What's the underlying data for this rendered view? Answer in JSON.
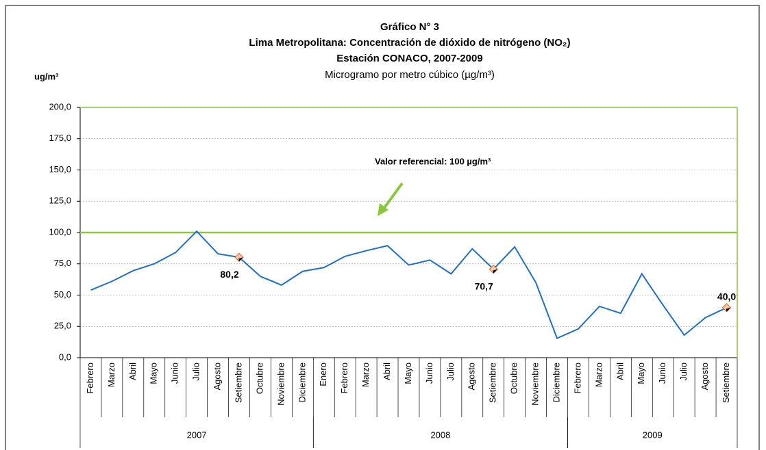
{
  "chart_data": {
    "type": "line",
    "title": "Gráfico N° 3",
    "subtitle": "Lima Metropolitana: Concentración de dióxido de nitrógeno (NO₂)",
    "subtitle2": "Estación CONACO, 2007-2009",
    "note": "Microgramo por metro cúbico (µg/m³)",
    "y_unit": "ug/m³",
    "categories": [
      "Febrero",
      "Marzo",
      "Abril",
      "Mayo",
      "Junio",
      "Julio",
      "Agosto",
      "Setiembre",
      "Octubre",
      "Noviembre",
      "Diciembre",
      "Enero",
      "Febrero",
      "Marzo",
      "Abril",
      "Mayo",
      "Junio",
      "Julio",
      "Agosto",
      "Setiembre",
      "Octubre",
      "Noviembre",
      "Diciembre",
      "Febrero",
      "Marzo",
      "Abril",
      "Mayo",
      "Junio",
      "Julio",
      "Agosto",
      "Setiembre"
    ],
    "groups": [
      {
        "label": "2007",
        "count": 11
      },
      {
        "label": "2008",
        "count": 12
      },
      {
        "label": "2009",
        "count": 8
      }
    ],
    "series": [
      {
        "name": "NO2",
        "color": "#1f6fc6",
        "values": [
          54,
          61,
          69.5,
          75,
          84,
          101,
          83,
          80.2,
          65,
          58,
          69,
          72,
          81,
          85.5,
          89.5,
          74,
          78,
          67,
          87,
          70.7,
          88.5,
          60,
          15.5,
          23,
          41,
          35.5,
          67,
          42,
          18,
          32,
          40.0
        ],
        "value_labels": [
          null,
          null,
          null,
          null,
          null,
          null,
          null,
          "80,2",
          null,
          null,
          null,
          null,
          null,
          null,
          null,
          null,
          null,
          null,
          null,
          "70,7",
          null,
          null,
          null,
          null,
          null,
          null,
          null,
          null,
          null,
          null,
          "40,0"
        ]
      }
    ],
    "reference_line": {
      "value": 100,
      "color": "#8cc63f",
      "label": "Valor referencial: 100 µg/m³"
    },
    "ylim": [
      0,
      200
    ],
    "yticks": [
      {
        "value": 0,
        "label": "0,0"
      },
      {
        "value": 25,
        "label": "25,0"
      },
      {
        "value": 50,
        "label": "50,0"
      },
      {
        "value": 75,
        "label": "75,0"
      },
      {
        "value": 100,
        "label": "100,0"
      },
      {
        "value": 125,
        "label": "125,0"
      },
      {
        "value": 150,
        "label": "150,0"
      },
      {
        "value": 175,
        "label": "175,0"
      },
      {
        "value": 200,
        "label": "200,0"
      }
    ],
    "grid": true
  }
}
